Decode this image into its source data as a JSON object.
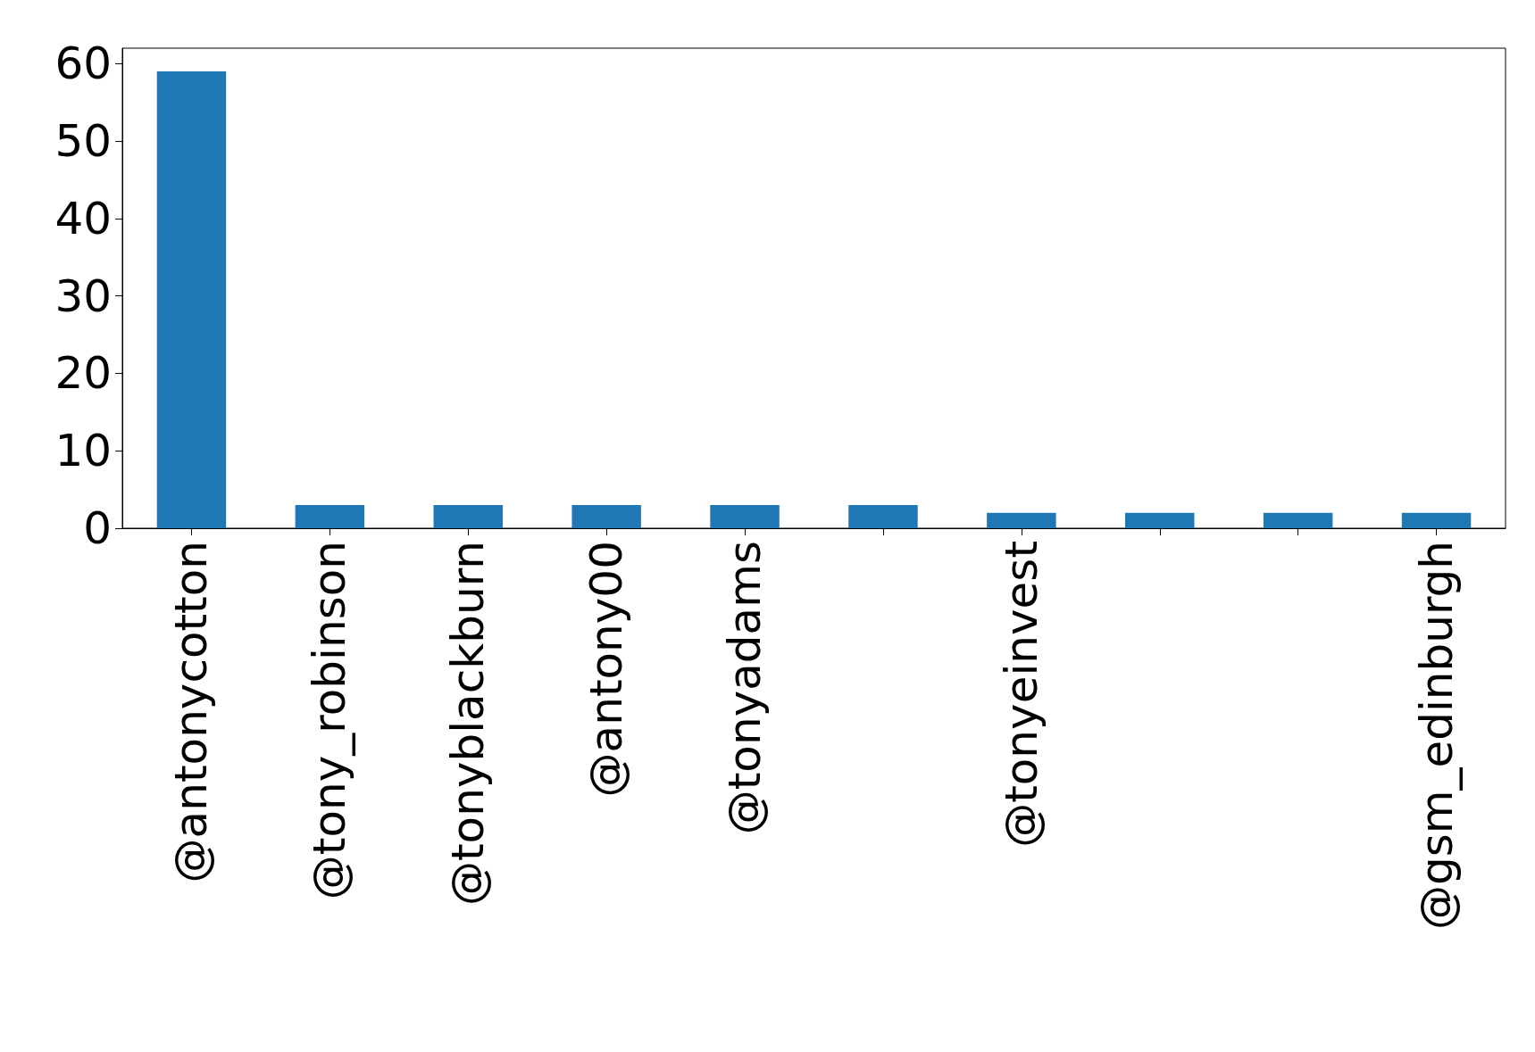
{
  "chart_data": {
    "type": "bar",
    "categories": [
      "@antonycotton",
      "@tony_robinson",
      "@tonyblackburn",
      "@antony00",
      "@tonyadams",
      null,
      "@tonyeinvest",
      null,
      null,
      "@gsm_edinburgh"
    ],
    "values": [
      59,
      3,
      3,
      3,
      3,
      3,
      2,
      2,
      2,
      2
    ],
    "color": "#1f77b4",
    "ylim": [
      0,
      62
    ],
    "yticks": [
      0,
      10,
      20,
      30,
      40,
      50,
      60
    ],
    "grid": false
  }
}
